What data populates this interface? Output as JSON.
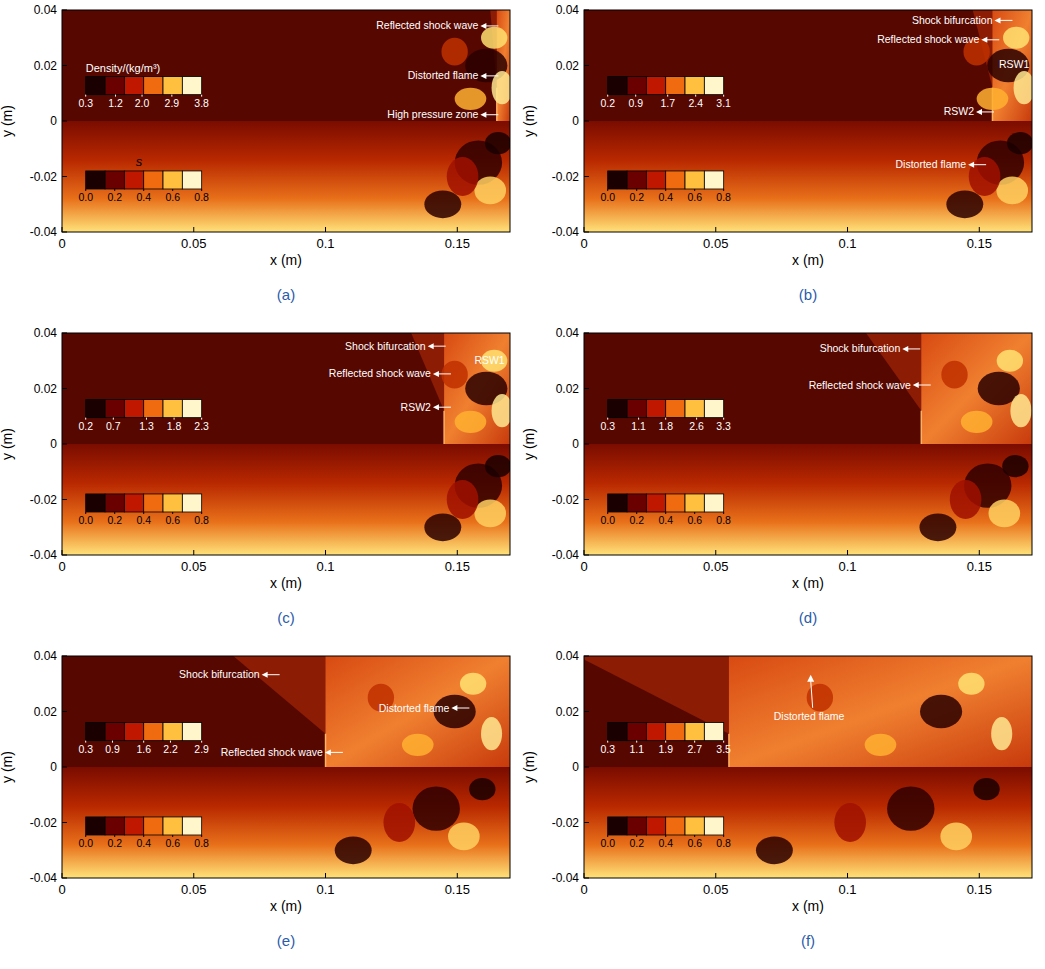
{
  "chart_data": [
    {
      "type": "contour",
      "title": "(a)",
      "xlabel": "x (m)",
      "ylabel": "y (m)",
      "xlim": [
        0,
        0.17
      ],
      "ylim": [
        -0.04,
        0.04
      ],
      "xticks": [
        0,
        0.05,
        0.1,
        0.15
      ],
      "yticks": [
        -0.04,
        -0.02,
        0,
        0.02,
        0.04
      ],
      "shock_x": 0.165,
      "colorbars": [
        {
          "title": "Density/(kg/m³)",
          "lim": [
            0.3,
            3.8
          ],
          "ticks": [
            0.3,
            1.2,
            {
              "value": 2,
              "label": "2.0"
            },
            2.9,
            3.8
          ]
        },
        {
          "title": "s",
          "lim": [
            0,
            0.8
          ],
          "ticks": [
            {
              "value": 0,
              "label": "0.0"
            },
            0.2,
            0.4,
            0.6,
            0.8
          ]
        }
      ],
      "annotations": [
        "Reflected shock wave",
        "Distorted flame",
        "High pressure zone"
      ]
    },
    {
      "type": "contour",
      "title": "(b)",
      "xlabel": "x (m)",
      "ylabel": "y (m)",
      "xlim": [
        0,
        0.17
      ],
      "ylim": [
        -0.04,
        0.04
      ],
      "xticks": [
        0,
        0.05,
        0.1,
        0.15
      ],
      "yticks": [
        -0.04,
        -0.02,
        0,
        0.02,
        0.04
      ],
      "shock_x": 0.155,
      "colorbars": [
        {
          "lim": [
            0.2,
            3.1
          ],
          "ticks": [
            0.2,
            0.9,
            1.7,
            2.4,
            3.1
          ]
        },
        {
          "lim": [
            0,
            0.8
          ],
          "ticks": [
            {
              "value": 0,
              "label": "0.0"
            },
            0.2,
            0.4,
            0.6,
            0.8
          ]
        }
      ],
      "annotations": [
        "Shock bifurcation",
        "Reflected shock wave",
        "RSW1",
        "RSW2",
        "Distorted flame"
      ]
    },
    {
      "type": "contour",
      "title": "(c)",
      "xlabel": "x (m)",
      "ylabel": "y (m)",
      "xlim": [
        0,
        0.17
      ],
      "ylim": [
        -0.04,
        0.04
      ],
      "xticks": [
        0,
        0.05,
        0.1,
        0.15
      ],
      "yticks": [
        -0.04,
        -0.02,
        0,
        0.02,
        0.04
      ],
      "shock_x": 0.145,
      "colorbars": [
        {
          "lim": [
            0.2,
            2.3
          ],
          "ticks": [
            0.2,
            0.7,
            1.3,
            1.8,
            2.3
          ]
        },
        {
          "lim": [
            0,
            0.8
          ],
          "ticks": [
            {
              "value": 0,
              "label": "0.0"
            },
            0.2,
            0.4,
            0.6,
            0.8
          ]
        }
      ],
      "annotations": [
        "Shock bifurcation",
        "Reflected shock wave",
        "RSW1",
        "RSW2"
      ]
    },
    {
      "type": "contour",
      "title": "(d)",
      "xlabel": "x (m)",
      "ylabel": "y (m)",
      "xlim": [
        0,
        0.17
      ],
      "ylim": [
        -0.04,
        0.04
      ],
      "xticks": [
        0,
        0.05,
        0.1,
        0.15
      ],
      "yticks": [
        -0.04,
        -0.02,
        0,
        0.02,
        0.04
      ],
      "shock_x": 0.128,
      "colorbars": [
        {
          "lim": [
            0.3,
            3.3
          ],
          "ticks": [
            0.3,
            1.1,
            1.8,
            2.6,
            3.3
          ]
        },
        {
          "lim": [
            0,
            0.8
          ],
          "ticks": [
            {
              "value": 0,
              "label": "0.0"
            },
            0.2,
            0.4,
            0.6,
            0.8
          ]
        }
      ],
      "annotations": [
        "Shock bifurcation",
        "Reflected shock wave"
      ]
    },
    {
      "type": "contour",
      "title": "(e)",
      "xlabel": "x (m)",
      "ylabel": "y (m)",
      "xlim": [
        0,
        0.17
      ],
      "ylim": [
        -0.04,
        0.04
      ],
      "xticks": [
        0,
        0.05,
        0.1,
        0.15
      ],
      "yticks": [
        -0.04,
        -0.02,
        0,
        0.02,
        0.04
      ],
      "shock_x": 0.1,
      "colorbars": [
        {
          "lim": [
            0.3,
            2.9
          ],
          "ticks": [
            0.3,
            0.9,
            1.6,
            2.2,
            2.9
          ]
        },
        {
          "lim": [
            0,
            0.8
          ],
          "ticks": [
            {
              "value": 0,
              "label": "0.0"
            },
            0.2,
            0.4,
            0.6,
            0.8
          ]
        }
      ],
      "annotations": [
        "Shock bifurcation",
        "Reflected shock wave",
        "Distorted flame"
      ]
    },
    {
      "type": "contour",
      "title": "(f)",
      "xlabel": "x (m)",
      "ylabel": "y (m)",
      "xlim": [
        0,
        0.17
      ],
      "ylim": [
        -0.04,
        0.04
      ],
      "xticks": [
        0,
        0.05,
        0.1,
        0.15
      ],
      "yticks": [
        -0.04,
        -0.02,
        0,
        0.02,
        0.04
      ],
      "shock_x": 0.055,
      "colorbars": [
        {
          "lim": [
            0.3,
            3.5
          ],
          "ticks": [
            0.3,
            1.1,
            1.9,
            2.7,
            3.5
          ]
        },
        {
          "lim": [
            0,
            0.8
          ],
          "ticks": [
            {
              "value": 0,
              "label": "0.0"
            },
            0.2,
            0.4,
            0.6,
            0.8
          ]
        }
      ],
      "annotations": [
        "Distorted flame"
      ]
    }
  ]
}
